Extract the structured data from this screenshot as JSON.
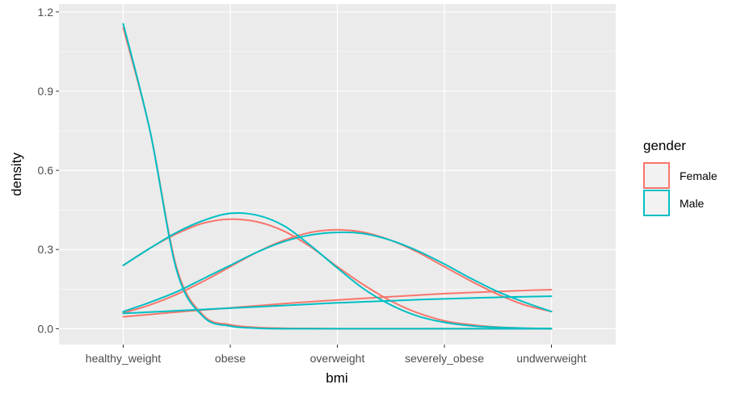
{
  "chart_data": {
    "type": "line",
    "xlabel": "bmi",
    "ylabel": "density",
    "categories": [
      "healthy_weight",
      "obese",
      "overweight",
      "severely_obese",
      "undwerweight"
    ],
    "ylim": [
      -0.06,
      1.23
    ],
    "y_ticks": [
      0.0,
      0.3,
      0.6,
      0.9,
      1.2
    ],
    "y_tick_labels": [
      "0.0",
      "0.3",
      "0.6",
      "0.9",
      "1.2"
    ],
    "grid": true,
    "legend": {
      "title": "gender",
      "placement": "right",
      "entries": [
        {
          "label": "Female",
          "color": "#F8766D"
        },
        {
          "label": "Male",
          "color": "#00BFC4"
        }
      ]
    },
    "series": [
      {
        "group": "Female",
        "color": "#F8766D",
        "x": [
          1,
          1.25,
          1.5,
          1.75,
          2,
          2.25,
          2.5,
          2.75,
          3,
          3.25,
          3.5,
          3.75,
          4,
          4.25,
          4.5,
          4.75,
          5
        ],
        "values": [
          1.14,
          0.75,
          0.23,
          0.05,
          0.015,
          0.005,
          0.002,
          0.001,
          0.0,
          0.0,
          0.0,
          0.0,
          0.0,
          0.0,
          0.0,
          0.0,
          0.0
        ]
      },
      {
        "group": "Female",
        "color": "#F8766D",
        "x": [
          1,
          1.25,
          1.5,
          1.75,
          2,
          2.25,
          2.5,
          2.75,
          3,
          3.25,
          3.5,
          3.75,
          4,
          4.25,
          4.5,
          4.75,
          5
        ],
        "values": [
          0.24,
          0.305,
          0.36,
          0.4,
          0.415,
          0.405,
          0.37,
          0.31,
          0.235,
          0.165,
          0.105,
          0.06,
          0.03,
          0.015,
          0.006,
          0.002,
          0.0
        ]
      },
      {
        "group": "Female",
        "color": "#F8766D",
        "x": [
          1,
          1.25,
          1.5,
          1.75,
          2,
          2.25,
          2.5,
          2.75,
          3,
          3.25,
          3.5,
          3.75,
          4,
          4.25,
          4.5,
          4.75,
          5
        ],
        "values": [
          0.06,
          0.09,
          0.13,
          0.18,
          0.235,
          0.29,
          0.335,
          0.365,
          0.375,
          0.365,
          0.335,
          0.29,
          0.235,
          0.18,
          0.13,
          0.09,
          0.065
        ]
      },
      {
        "group": "Female",
        "color": "#F8766D",
        "x": [
          1,
          1.25,
          1.5,
          1.75,
          2,
          2.25,
          2.5,
          2.75,
          3,
          3.25,
          3.5,
          3.75,
          4,
          4.25,
          4.5,
          4.75,
          5
        ],
        "values": [
          0.045,
          0.054,
          0.063,
          0.071,
          0.079,
          0.087,
          0.095,
          0.102,
          0.109,
          0.115,
          0.121,
          0.127,
          0.133,
          0.137,
          0.141,
          0.145,
          0.148
        ]
      },
      {
        "group": "Male",
        "color": "#00BFC4",
        "x": [
          1,
          1.25,
          1.5,
          1.75,
          2,
          2.25,
          2.5,
          2.75,
          3,
          3.25,
          3.5,
          3.75,
          4,
          4.25,
          4.5,
          4.75,
          5
        ],
        "values": [
          1.155,
          0.75,
          0.22,
          0.045,
          0.01,
          0.002,
          0.0,
          0.0,
          0.0,
          0.0,
          0.0,
          0.0,
          0.0,
          0.0,
          0.0,
          0.0,
          0.0
        ]
      },
      {
        "group": "Male",
        "color": "#00BFC4",
        "x": [
          1,
          1.25,
          1.5,
          1.75,
          2,
          2.25,
          2.5,
          2.75,
          3,
          3.25,
          3.5,
          3.75,
          4,
          4.25,
          4.5,
          4.75,
          5
        ],
        "values": [
          0.24,
          0.305,
          0.365,
          0.41,
          0.437,
          0.43,
          0.39,
          0.315,
          0.23,
          0.15,
          0.09,
          0.048,
          0.024,
          0.011,
          0.005,
          0.002,
          0.001
        ]
      },
      {
        "group": "Male",
        "color": "#00BFC4",
        "x": [
          1,
          1.25,
          1.5,
          1.75,
          2,
          2.25,
          2.5,
          2.75,
          3,
          3.25,
          3.5,
          3.75,
          4,
          4.25,
          4.5,
          4.75,
          5
        ],
        "values": [
          0.065,
          0.1,
          0.14,
          0.19,
          0.24,
          0.29,
          0.33,
          0.355,
          0.365,
          0.36,
          0.335,
          0.295,
          0.245,
          0.19,
          0.14,
          0.1,
          0.065
        ]
      },
      {
        "group": "Male",
        "color": "#00BFC4",
        "x": [
          1,
          1.25,
          1.5,
          1.75,
          2,
          2.25,
          2.5,
          2.75,
          3,
          3.25,
          3.5,
          3.75,
          4,
          4.25,
          4.5,
          4.75,
          5
        ],
        "values": [
          0.058,
          0.063,
          0.068,
          0.073,
          0.078,
          0.083,
          0.088,
          0.093,
          0.098,
          0.102,
          0.106,
          0.11,
          0.113,
          0.116,
          0.119,
          0.121,
          0.123
        ]
      }
    ]
  }
}
